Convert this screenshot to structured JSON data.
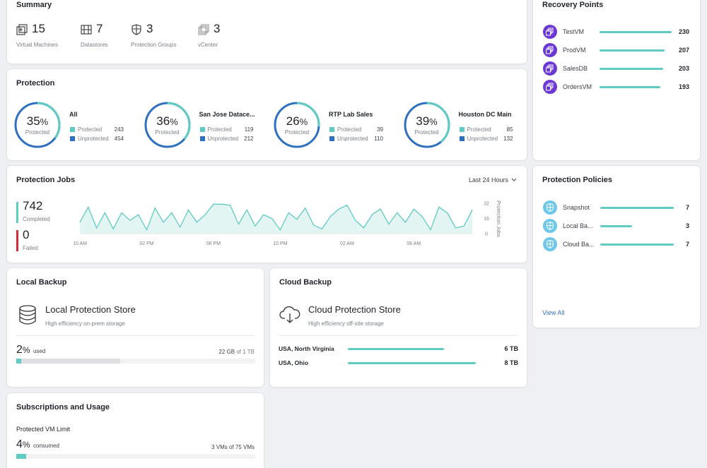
{
  "summary": {
    "title": "Summary",
    "items": [
      {
        "value": 15,
        "label": "Virtual Machines"
      },
      {
        "value": 7,
        "label": "Datastores"
      },
      {
        "value": 3,
        "label": "Protection Groups"
      },
      {
        "value": 3,
        "label": "vCenter"
      }
    ]
  },
  "protection": {
    "title": "Protection",
    "groups": [
      {
        "name": "All",
        "percent": 35,
        "unit": "%",
        "center_label": "Protected",
        "protected_label": "Protected",
        "protected": 243,
        "unprotected_label": "Unprotected",
        "unprotected": 454
      },
      {
        "name": "San Jose Datace...",
        "percent": 36,
        "unit": "%",
        "center_label": "Protected",
        "protected_label": "Protected",
        "protected": 119,
        "unprotected_label": "Unprotected",
        "unprotected": 212
      },
      {
        "name": "RTP Lab Sales",
        "percent": 26,
        "unit": "%",
        "center_label": "Protected",
        "protected_label": "Protected",
        "protected": 39,
        "unprotected_label": "Unprotected",
        "unprotected": 110
      },
      {
        "name": "Houston DC Main",
        "percent": 39,
        "unit": "%",
        "center_label": "Protected",
        "protected_label": "Protected",
        "protected": 85,
        "unprotected_label": "Unprotected",
        "unprotected": 132
      }
    ]
  },
  "protection_jobs": {
    "title": "Protection Jobs",
    "range": "Last 24 Hours",
    "completed": 742,
    "completed_label": "Completed",
    "failed": 0,
    "failed_label": "Failed",
    "chart": {
      "type": "line",
      "y_label": "Protection Jobs",
      "color": "#5fcbc3",
      "categories": [
        "10 AM",
        null,
        null,
        null,
        null,
        null,
        null,
        null,
        "02 PM",
        null,
        null,
        null,
        null,
        null,
        null,
        null,
        "06 PM",
        null,
        null,
        null,
        null,
        null,
        null,
        null,
        "10 PM",
        null,
        null,
        null,
        null,
        null,
        null,
        null,
        "02 AM",
        null,
        null,
        null,
        null,
        null,
        null,
        null,
        "06 AM",
        null,
        null,
        null,
        null,
        null,
        null,
        null
      ],
      "values": [
        12,
        28,
        6,
        22,
        5,
        22,
        14,
        20,
        4,
        27,
        12,
        22,
        7,
        25,
        12,
        20,
        31,
        31,
        30,
        10,
        25,
        8,
        20,
        16,
        4,
        22,
        15,
        27,
        9,
        5,
        18,
        26,
        30,
        14,
        6,
        20,
        26,
        10,
        22,
        12,
        26,
        18,
        4,
        28,
        22,
        6,
        8,
        25
      ],
      "ylim": [
        0,
        32
      ],
      "yticks": [
        0,
        16,
        32
      ],
      "grid": false
    }
  },
  "local_backup": {
    "title": "Local Backup",
    "store_name": "Local Protection Store",
    "description": "High efficiency on-prem storage",
    "percent": 2,
    "unit": "%",
    "used_label": "used",
    "used_amount": "22 GB",
    "capacity": "of 1 TB"
  },
  "cloud_backup": {
    "title": "Cloud Backup",
    "store_name": "Cloud Protection Store",
    "description": "High efficiency off-site storage",
    "regions": [
      {
        "name": "USA, North Virginia",
        "value": 6,
        "value_label": "6 TB"
      },
      {
        "name": "USA, Ohio",
        "value": 8,
        "value_label": "8 TB"
      }
    ]
  },
  "subscriptions": {
    "title": "Subscriptions and Usage",
    "limit_label": "Protected VM Limit",
    "percent": 4,
    "unit": "%",
    "consumed_label": "consumed",
    "detail": "3 VMs of 75 VMs"
  },
  "recovery_points": {
    "title": "Recovery Points",
    "items": [
      {
        "name": "TestVM",
        "value": 230
      },
      {
        "name": "ProdVM",
        "value": 207
      },
      {
        "name": "SalesDB",
        "value": 203
      },
      {
        "name": "OrdersVM",
        "value": 193
      }
    ]
  },
  "protection_policies": {
    "title": "Protection Policies",
    "items": [
      {
        "name": "Snapshot",
        "value": 7
      },
      {
        "name": "Local Ba...",
        "value": 3
      },
      {
        "name": "Cloud Ba...",
        "value": 7
      }
    ],
    "link": "View All"
  }
}
